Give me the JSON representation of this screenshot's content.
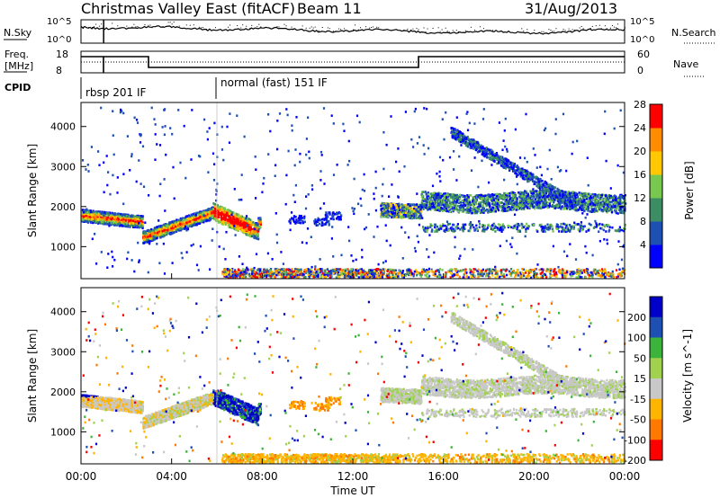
{
  "header": {
    "title": "Christmas Valley East (fitACF)",
    "beam": "Beam 11",
    "date": "31/Aug/2013"
  },
  "top_panels": {
    "nsky_label": "N.Sky",
    "nsky_ticks": [
      "10^5",
      "10^0"
    ],
    "nsearch_label": "N.Search",
    "nsearch_ticks": [
      "10^5",
      "10^0"
    ],
    "freq_label_1": "Freq.",
    "freq_label_2": "[MHz]",
    "freq_ticks": [
      "18",
      "8"
    ],
    "nave_label": "Nave",
    "nave_ticks": [
      "60",
      "0"
    ],
    "cpid_label": "CPID",
    "cpid_segments": [
      "rbsp 201 IF",
      "normal (fast) 151 IF"
    ]
  },
  "chart_data": [
    {
      "type": "heatmap",
      "name": "power-panel",
      "ylabel": "Slant Range [km]",
      "xlabel": "",
      "xlim": [
        0,
        24
      ],
      "ylim": [
        200,
        4600
      ],
      "yticks": [
        "1000",
        "2000",
        "3000",
        "4000"
      ],
      "colorbar": {
        "label": "Power [dB]",
        "ticks": [
          "4",
          "8",
          "12",
          "16",
          "20",
          "24",
          "28"
        ],
        "colors": [
          "#0000ff",
          "#1e50b4",
          "#3c8c64",
          "#78c850",
          "#ffc800",
          "#ff8c00",
          "#ff0000"
        ]
      }
    },
    {
      "type": "heatmap",
      "name": "velocity-panel",
      "ylabel": "Slant Range [km]",
      "xlabel": "Time UT",
      "xlim": [
        0,
        24
      ],
      "ylim": [
        200,
        4600
      ],
      "yticks": [
        "1000",
        "2000",
        "3000",
        "4000"
      ],
      "xticks": [
        "00:00",
        "04:00",
        "08:00",
        "12:00",
        "16:00",
        "20:00",
        "00:00"
      ],
      "colorbar": {
        "label": "Velocity [m s^-1]",
        "ticks": [
          "200",
          "100",
          "50",
          "15",
          "-15",
          "-50",
          "-100",
          "-200"
        ],
        "colors": [
          "#0000c8",
          "#1e50b4",
          "#3cb43c",
          "#a0d250",
          "#c8c8c8",
          "#ffb400",
          "#ff7800",
          "#ff0000"
        ]
      }
    }
  ]
}
